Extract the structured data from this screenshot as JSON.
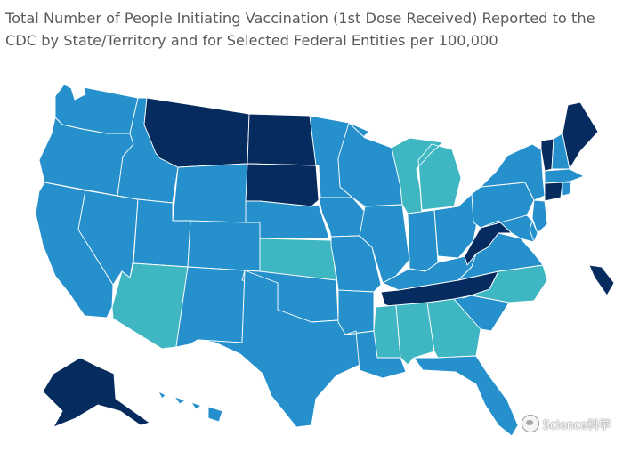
{
  "title": "Total Number of People Initiating Vaccination (1st Dose Received) Reported to the CDC by State/Territory and for Selected Federal Entities per 100,000",
  "watermark": "Science科学",
  "colors": {
    "lightest": "#3fb7c2",
    "medium": "#2590cc",
    "darkest": "#062b5e",
    "border": "#ffffff"
  },
  "states": [
    {
      "id": "WA",
      "tier": "medium"
    },
    {
      "id": "OR",
      "tier": "medium"
    },
    {
      "id": "CA",
      "tier": "medium"
    },
    {
      "id": "NV",
      "tier": "medium"
    },
    {
      "id": "ID",
      "tier": "medium"
    },
    {
      "id": "MT",
      "tier": "darkest"
    },
    {
      "id": "WY",
      "tier": "medium"
    },
    {
      "id": "UT",
      "tier": "medium"
    },
    {
      "id": "AZ",
      "tier": "lightest"
    },
    {
      "id": "CO",
      "tier": "medium"
    },
    {
      "id": "NM",
      "tier": "medium"
    },
    {
      "id": "ND",
      "tier": "darkest"
    },
    {
      "id": "SD",
      "tier": "darkest"
    },
    {
      "id": "NE",
      "tier": "medium"
    },
    {
      "id": "KS",
      "tier": "lightest"
    },
    {
      "id": "OK",
      "tier": "medium"
    },
    {
      "id": "TX",
      "tier": "medium"
    },
    {
      "id": "MN",
      "tier": "medium"
    },
    {
      "id": "IA",
      "tier": "medium"
    },
    {
      "id": "MO",
      "tier": "medium"
    },
    {
      "id": "AR",
      "tier": "medium"
    },
    {
      "id": "LA",
      "tier": "medium"
    },
    {
      "id": "WI",
      "tier": "medium"
    },
    {
      "id": "IL",
      "tier": "medium"
    },
    {
      "id": "MI",
      "tier": "lightest"
    },
    {
      "id": "IN",
      "tier": "medium"
    },
    {
      "id": "OH",
      "tier": "medium"
    },
    {
      "id": "KY",
      "tier": "medium"
    },
    {
      "id": "TN",
      "tier": "darkest"
    },
    {
      "id": "MS",
      "tier": "lightest"
    },
    {
      "id": "AL",
      "tier": "lightest"
    },
    {
      "id": "GA",
      "tier": "lightest"
    },
    {
      "id": "FL",
      "tier": "medium"
    },
    {
      "id": "SC",
      "tier": "medium"
    },
    {
      "id": "NC",
      "tier": "lightest"
    },
    {
      "id": "VA",
      "tier": "medium"
    },
    {
      "id": "WV",
      "tier": "darkest"
    },
    {
      "id": "PA",
      "tier": "medium"
    },
    {
      "id": "NY",
      "tier": "medium"
    },
    {
      "id": "VT",
      "tier": "darkest"
    },
    {
      "id": "NH",
      "tier": "medium"
    },
    {
      "id": "ME",
      "tier": "darkest"
    },
    {
      "id": "MA",
      "tier": "medium"
    },
    {
      "id": "CT",
      "tier": "darkest"
    },
    {
      "id": "RI",
      "tier": "medium"
    },
    {
      "id": "NJ",
      "tier": "medium"
    },
    {
      "id": "DE",
      "tier": "medium"
    },
    {
      "id": "MD",
      "tier": "medium"
    },
    {
      "id": "AK",
      "tier": "darkest"
    },
    {
      "id": "HI",
      "tier": "medium"
    },
    {
      "id": "PR",
      "tier": "darkest"
    }
  ]
}
